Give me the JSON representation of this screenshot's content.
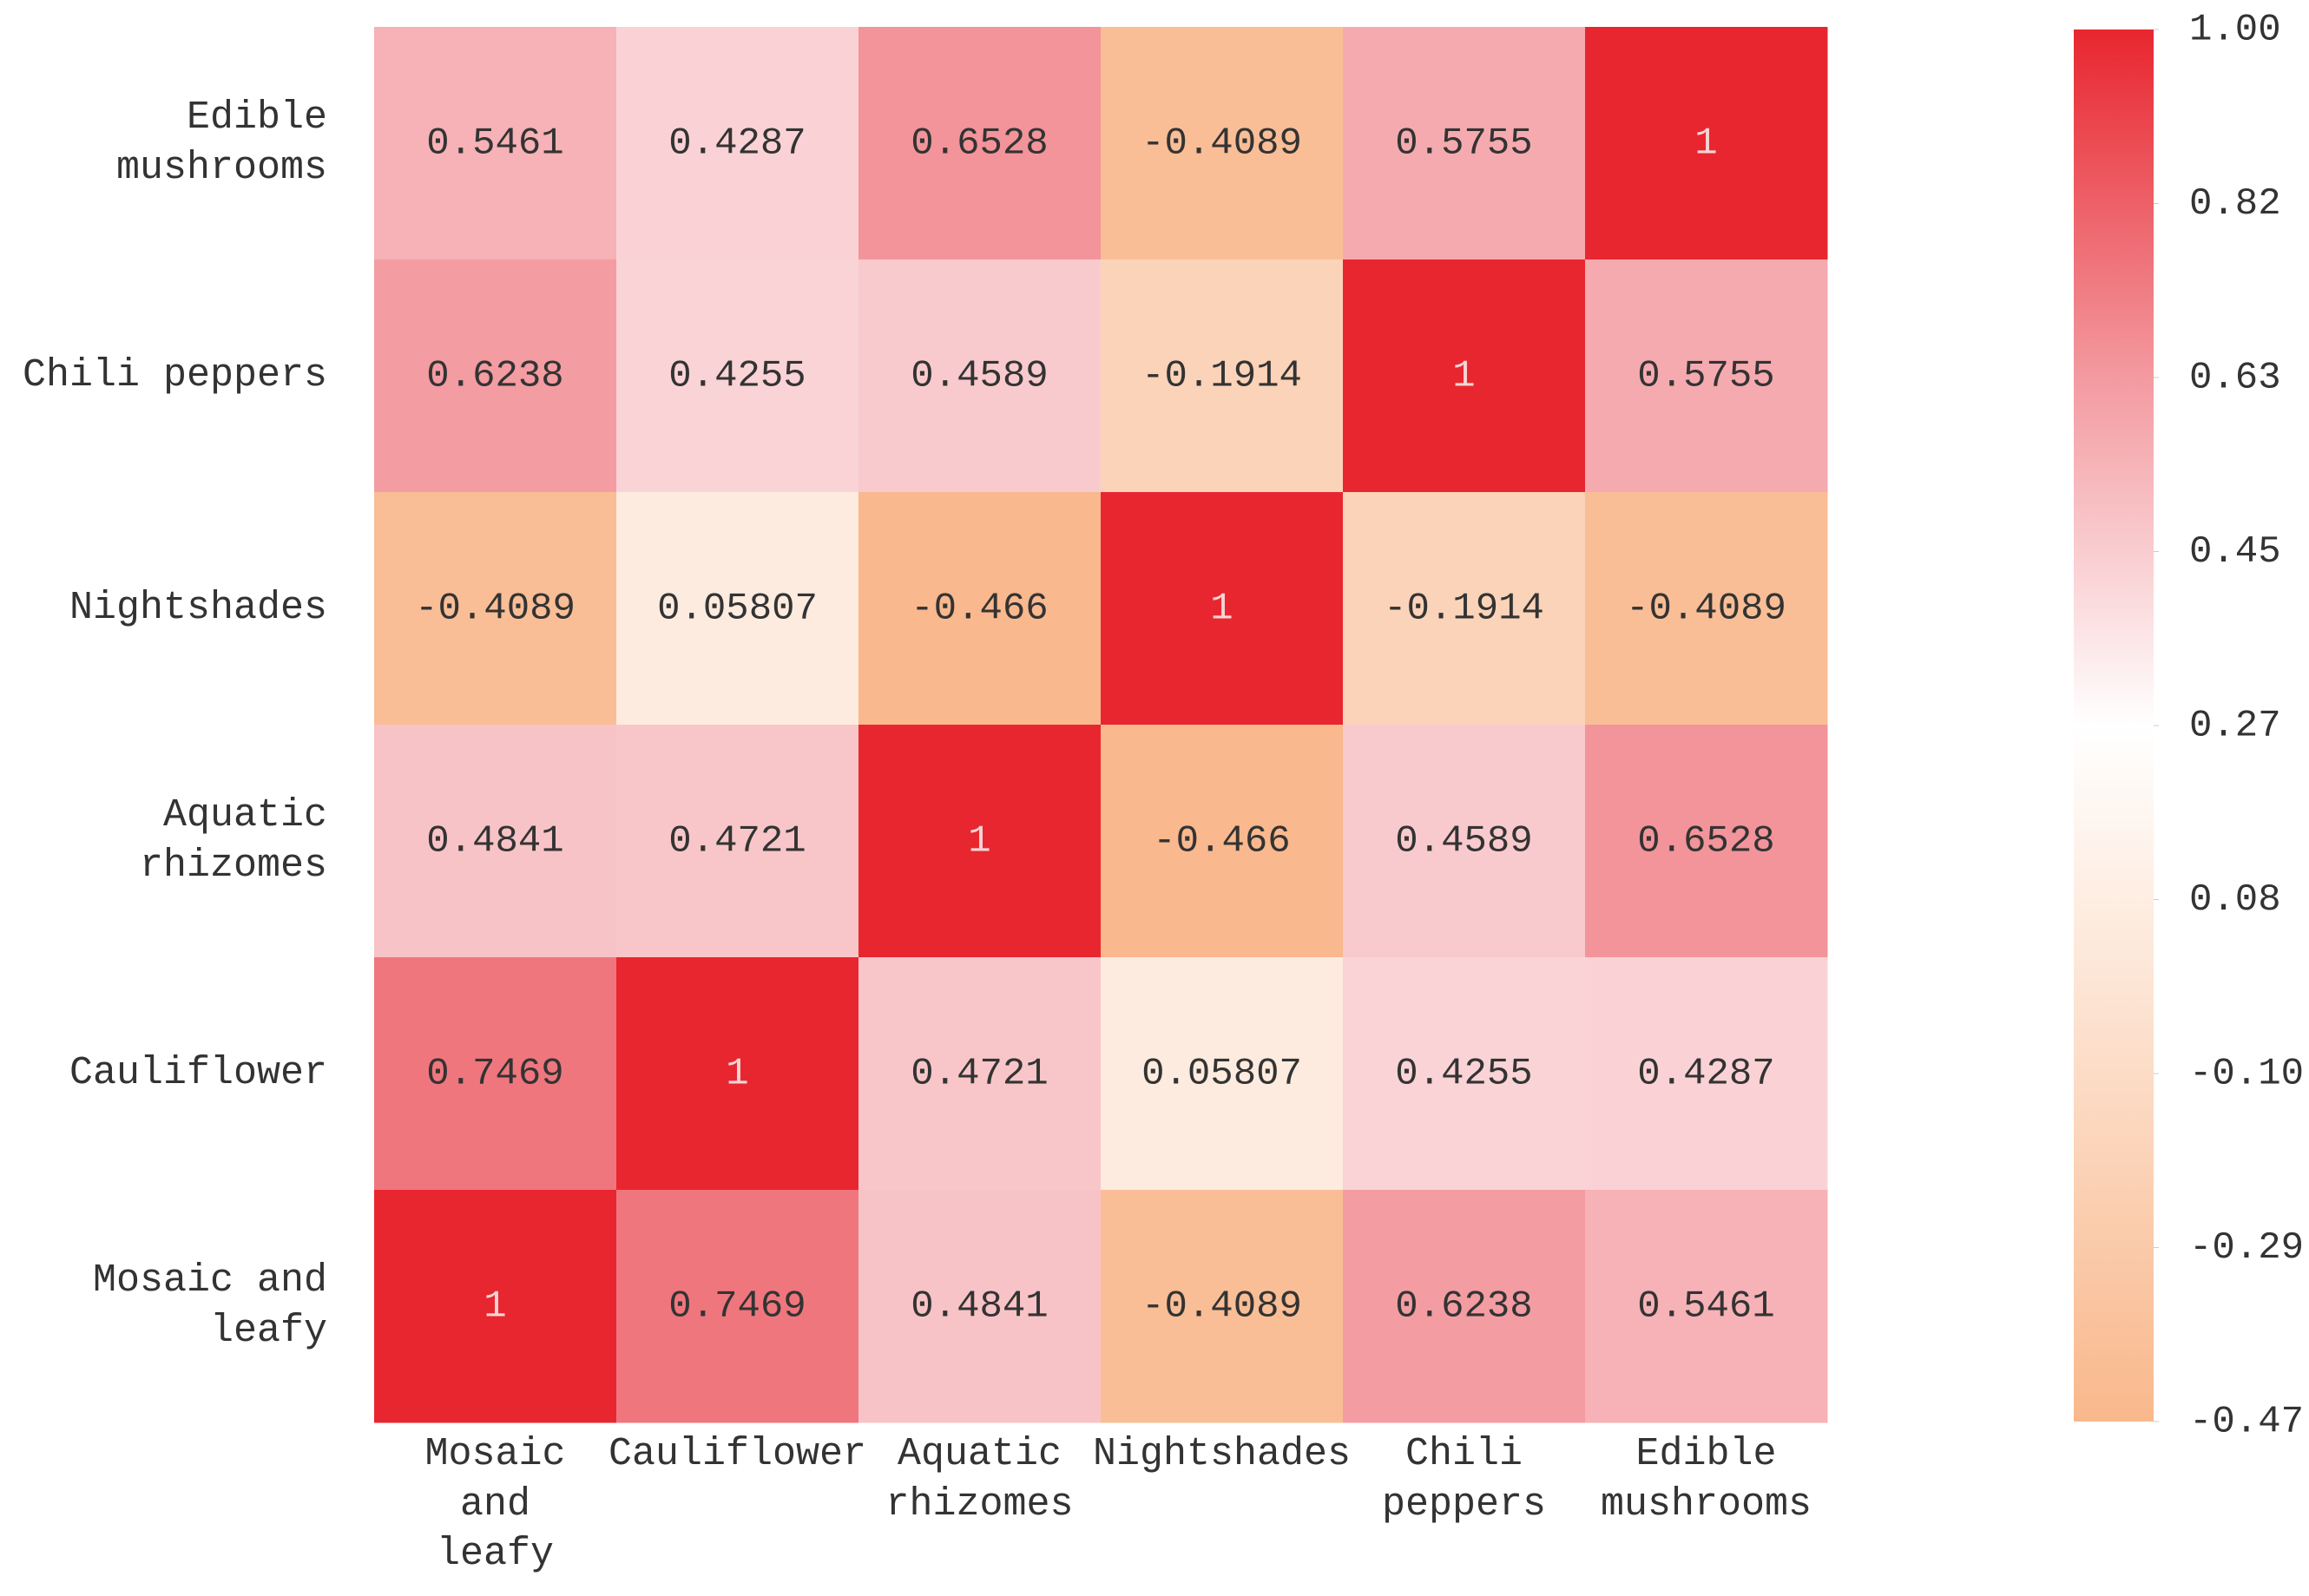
{
  "chart_data": {
    "type": "heatmap",
    "x_categories": [
      "Mosaic and leafy",
      "Cauliflower",
      "Aquatic rhizomes",
      "Nightshades",
      "Chili peppers",
      "Edible mushrooms"
    ],
    "y_categories": [
      "Edible mushrooms",
      "Chili peppers",
      "Nightshades",
      "Aquatic rhizomes",
      "Cauliflower",
      "Mosaic and leafy"
    ],
    "values": [
      [
        0.5461,
        0.4287,
        0.6528,
        -0.4089,
        0.5755,
        1
      ],
      [
        0.6238,
        0.4255,
        0.4589,
        -0.1914,
        1,
        0.5755
      ],
      [
        -0.4089,
        0.05807,
        -0.466,
        1,
        -0.1914,
        -0.4089
      ],
      [
        0.4841,
        0.4721,
        1,
        -0.466,
        0.4589,
        0.6528
      ],
      [
        0.7469,
        1,
        0.4721,
        0.05807,
        0.4255,
        0.4287
      ],
      [
        1,
        0.7469,
        0.4841,
        -0.4089,
        0.6238,
        0.5461
      ]
    ],
    "zlim": [
      -0.47,
      1
    ],
    "zticks": [
      {
        "value": 1,
        "label": "1.00"
      },
      {
        "value": 0.81625,
        "label": "0.82"
      },
      {
        "value": 0.6325,
        "label": "0.63"
      },
      {
        "value": 0.44875,
        "label": "0.45"
      },
      {
        "value": 0.265,
        "label": "0.27"
      },
      {
        "value": 0.08125,
        "label": "0.08"
      },
      {
        "value": -0.1025,
        "label": "-0.10"
      },
      {
        "value": -0.28625,
        "label": "-0.29"
      },
      {
        "value": -0.47,
        "label": "-0.47"
      }
    ],
    "colormap": [
      "#f9b88c",
      "#fcdcc6",
      "#ffffff",
      "#f39aa0",
      "#e8262f"
    ]
  }
}
